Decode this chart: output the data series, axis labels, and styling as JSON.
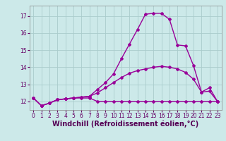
{
  "title": "",
  "xlabel": "Windchill (Refroidissement éolien,°C)",
  "ylabel": "",
  "xlim": [
    -0.5,
    23.5
  ],
  "ylim": [
    11.5,
    17.6
  ],
  "xticks": [
    0,
    1,
    2,
    3,
    4,
    5,
    6,
    7,
    8,
    9,
    10,
    11,
    12,
    13,
    14,
    15,
    16,
    17,
    18,
    19,
    20,
    21,
    22,
    23
  ],
  "yticks": [
    12,
    13,
    14,
    15,
    16,
    17
  ],
  "background_color": "#cce9e9",
  "grid_color": "#aacccc",
  "line_color": "#990099",
  "line1_x": [
    0,
    1,
    2,
    3,
    4,
    5,
    6,
    7,
    8,
    9,
    10,
    11,
    12,
    13,
    14,
    15,
    16,
    17,
    18,
    19,
    20,
    21,
    22,
    23
  ],
  "line1_y": [
    12.2,
    11.75,
    11.9,
    12.1,
    12.15,
    12.2,
    12.2,
    12.2,
    12.0,
    12.0,
    12.0,
    12.0,
    12.0,
    12.0,
    12.0,
    12.0,
    12.0,
    12.0,
    12.0,
    12.0,
    12.0,
    12.0,
    12.0,
    12.0
  ],
  "line2_x": [
    0,
    1,
    2,
    3,
    4,
    5,
    6,
    7,
    8,
    9,
    10,
    11,
    12,
    13,
    14,
    15,
    16,
    17,
    18,
    19,
    20,
    21,
    22,
    23
  ],
  "line2_y": [
    12.2,
    11.75,
    11.9,
    12.1,
    12.15,
    12.2,
    12.25,
    12.3,
    12.5,
    12.8,
    13.1,
    13.4,
    13.65,
    13.8,
    13.9,
    14.0,
    14.05,
    14.0,
    13.9,
    13.7,
    13.3,
    12.55,
    12.6,
    12.0
  ],
  "line3_x": [
    0,
    1,
    2,
    3,
    4,
    5,
    6,
    7,
    8,
    9,
    10,
    11,
    12,
    13,
    14,
    15,
    16,
    17,
    18,
    19,
    20,
    21,
    22,
    23
  ],
  "line3_y": [
    12.2,
    11.75,
    11.9,
    12.1,
    12.15,
    12.2,
    12.25,
    12.3,
    12.7,
    13.1,
    13.6,
    14.5,
    15.35,
    16.2,
    17.1,
    17.15,
    17.15,
    16.8,
    15.3,
    15.25,
    14.1,
    12.55,
    12.8,
    12.0
  ],
  "marker": "D",
  "markersize": 2.0,
  "linewidth": 1.0,
  "tick_fontsize": 5.5,
  "xlabel_fontsize": 7.0
}
